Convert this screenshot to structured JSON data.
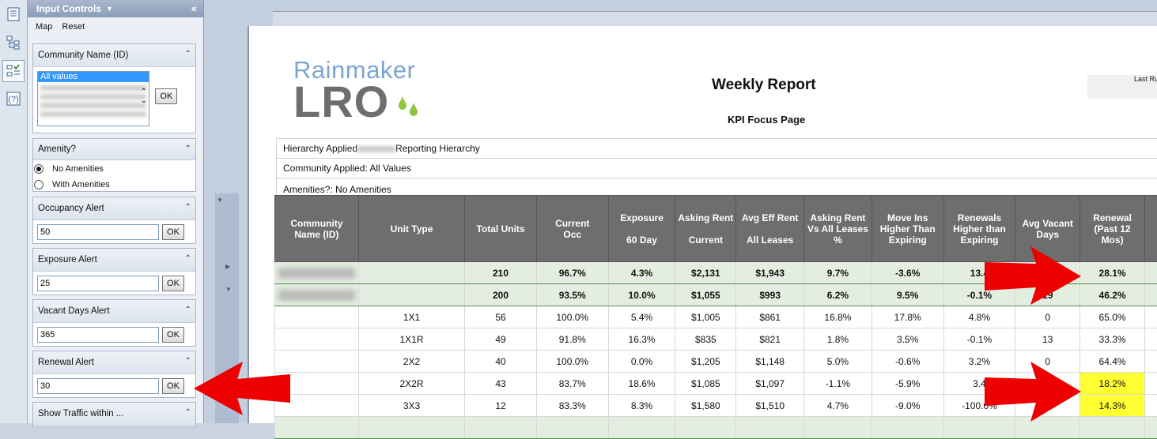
{
  "toolbar": {
    "icons": [
      "document-icon",
      "hierarchy-icon",
      "input-controls-icon",
      "help-icon"
    ]
  },
  "panel": {
    "title": "Input Controls",
    "menu": {
      "map": "Map",
      "reset": "Reset"
    },
    "community": {
      "label": "Community Name (ID)",
      "selected": "All values",
      "ok": "OK"
    },
    "amenity": {
      "label": "Amenity?",
      "options": [
        "No Amenities",
        "With Amenities"
      ],
      "selected": "No Amenities"
    },
    "occupancy": {
      "label": "Occupancy Alert",
      "value": "50",
      "ok": "OK"
    },
    "exposure": {
      "label": "Exposure Alert",
      "value": "25",
      "ok": "OK"
    },
    "vacant": {
      "label": "Vacant Days Alert",
      "value": "365",
      "ok": "OK"
    },
    "renewal": {
      "label": "Renewal Alert",
      "value": "30",
      "ok": "OK"
    },
    "traffic": {
      "label": "Show Traffic within ..."
    }
  },
  "report": {
    "logo_top": "Rainmaker",
    "logo_bottom": "LRO",
    "title": "Weekly Report",
    "subtitle": "KPI Focus Page",
    "last_run": "Last Ru",
    "hierarchy_prefix": "Hierarchy Applied",
    "hierarchy_suffix": "Reporting Hierarchy",
    "community_applied": "Community Applied: All Values",
    "amenities_applied": "Amenities?: No Amenities"
  },
  "table": {
    "headers": [
      {
        "l1": "Community",
        "l2": "Name (ID)"
      },
      {
        "l1": "Unit Type",
        "l2": ""
      },
      {
        "l1": "Total Units",
        "l2": ""
      },
      {
        "l1": "Current",
        "l2": "Occ"
      },
      {
        "l1": "Exposure",
        "l2": "60 Day"
      },
      {
        "l1": "Asking Rent",
        "l2": "Current"
      },
      {
        "l1": "Avg Eff Rent",
        "l2": "All Leases"
      },
      {
        "l1": "Asking Rent Vs All Leases %",
        "l2": ""
      },
      {
        "l1": "Move Ins Higher Than Expiring",
        "l2": ""
      },
      {
        "l1": "Renewals Higher than Expiring",
        "l2": ""
      },
      {
        "l1": "Avg Vacant Days",
        "l2": ""
      },
      {
        "l1": "Renewal (Past 12 Mos)",
        "l2": ""
      }
    ],
    "summary_rows": [
      {
        "unit": "",
        "total": "210",
        "occ": "96.7%",
        "exp": "4.3%",
        "ask": "$2,131",
        "eff": "$1,943",
        "vs": "9.7%",
        "moveins": "-3.6%",
        "renewals": "13.4",
        "vacant": "",
        "renewal": "28.1%",
        "renewal_alert": true
      },
      {
        "unit": "",
        "total": "200",
        "occ": "93.5%",
        "exp": "10.0%",
        "ask": "$1,055",
        "eff": "$993",
        "vs": "6.2%",
        "moveins": "9.5%",
        "renewals": "-0.1%",
        "vacant": "19",
        "renewal": "46.2%",
        "renewal_alert": false
      }
    ],
    "detail_rows": [
      {
        "unit": "1X1",
        "total": "56",
        "occ": "100.0%",
        "exp": "5.4%",
        "ask": "$1,005",
        "eff": "$861",
        "vs": "16.8%",
        "moveins": "17.8%",
        "renewals": "4.8%",
        "vacant": "0",
        "renewal": "65.0%",
        "renewal_alert": false
      },
      {
        "unit": "1X1R",
        "total": "49",
        "occ": "91.8%",
        "exp": "16.3%",
        "ask": "$835",
        "eff": "$821",
        "vs": "1.8%",
        "moveins": "3.5%",
        "renewals": "-0.1%",
        "vacant": "13",
        "renewal": "33.3%",
        "renewal_alert": false
      },
      {
        "unit": "2X2",
        "total": "40",
        "occ": "100.0%",
        "exp": "0.0%",
        "ask": "$1,205",
        "eff": "$1,148",
        "vs": "5.0%",
        "moveins": "-0.6%",
        "renewals": "3.2%",
        "vacant": "0",
        "renewal": "64.4%",
        "renewal_alert": false
      },
      {
        "unit": "2X2R",
        "total": "43",
        "occ": "83.7%",
        "exp": "18.6%",
        "ask": "$1,085",
        "eff": "$1,097",
        "vs": "-1.1%",
        "moveins": "-5.9%",
        "renewals": "3.4",
        "vacant": "",
        "renewal": "18.2%",
        "renewal_alert": true
      },
      {
        "unit": "3X3",
        "total": "12",
        "occ": "83.3%",
        "exp": "8.3%",
        "ask": "$1,580",
        "eff": "$1,510",
        "vs": "4.7%",
        "moveins": "-9.0%",
        "renewals": "-100.0%",
        "vacant": "4",
        "renewal": "14.3%",
        "renewal_alert": true
      }
    ]
  },
  "colors": {
    "highlight": "#ffff33",
    "arrow": "#ee0000",
    "summary_bg": "#e3eee0",
    "header_bg": "#6e6e6e"
  }
}
